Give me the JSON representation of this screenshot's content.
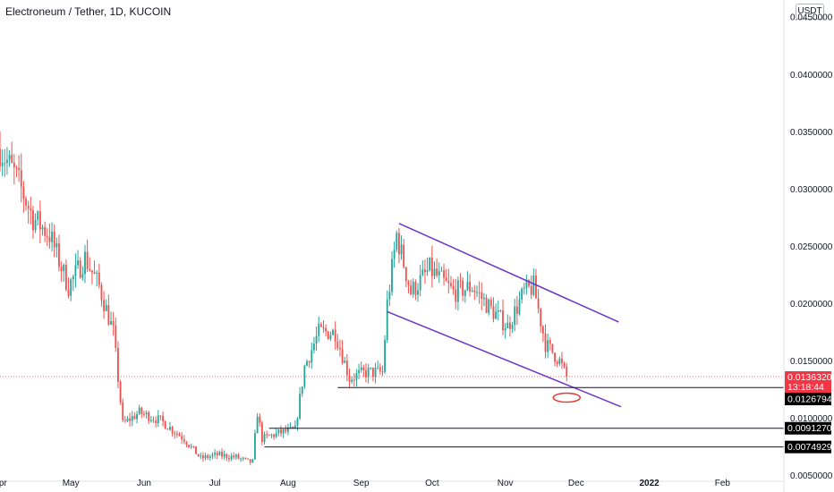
{
  "header": {
    "title": "Electroneum / Tether, 1D, KUCOIN",
    "currency": "USDT"
  },
  "colors": {
    "up": "#26a69a",
    "down": "#ef5350",
    "channel": "#6c34c9",
    "level": "#131722",
    "highlight": "#e53935",
    "current_price": "#f23645",
    "level_tag": "#000000"
  },
  "chart_data": {
    "type": "candlestick",
    "symbol": "Electroneum / Tether",
    "timeframe": "1D",
    "exchange": "KUCOIN",
    "x_range": [
      "2021-04-01",
      "2022-02-27"
    ],
    "ylim": [
      0.0045,
      0.0465
    ],
    "x_tick_labels": [
      {
        "date": "2021-04-01",
        "label": "Apr"
      },
      {
        "date": "2021-05-01",
        "label": "May"
      },
      {
        "date": "2021-06-01",
        "label": "Jun"
      },
      {
        "date": "2021-07-01",
        "label": "Jul"
      },
      {
        "date": "2021-08-01",
        "label": "Aug"
      },
      {
        "date": "2021-09-01",
        "label": "Sep"
      },
      {
        "date": "2021-10-01",
        "label": "Oct"
      },
      {
        "date": "2021-11-01",
        "label": "Nov"
      },
      {
        "date": "2021-12-01",
        "label": "Dec"
      },
      {
        "date": "2022-01-01",
        "label": "2022"
      },
      {
        "date": "2022-02-01",
        "label": "Feb"
      }
    ],
    "y_tick_labels": [
      "0.0450000",
      "0.0400000",
      "0.0350000",
      "0.0300000",
      "0.0250000",
      "0.0200000",
      "0.0150000",
      "0.0100000",
      "0.0050000"
    ],
    "y_tick_values": [
      0.045,
      0.04,
      0.035,
      0.03,
      0.025,
      0.02,
      0.015,
      0.01,
      0.005
    ],
    "current_price": {
      "value": 0.013632,
      "label": "0.0136320",
      "countdown": "13:18:44"
    },
    "price_levels": [
      {
        "value": 0.0126794,
        "label": "0.0126794",
        "from": "2021-08-22"
      },
      {
        "value": 0.009127,
        "label": "0.0091270",
        "from": "2021-07-24"
      },
      {
        "value": 0.0074929,
        "label": "0.0074929",
        "from": "2021-07-22"
      }
    ],
    "descending_channel": {
      "upper": [
        {
          "date": "2021-09-17",
          "value": 0.027
        },
        {
          "date": "2021-12-19",
          "value": 0.0184
        }
      ],
      "lower": [
        {
          "date": "2021-09-12",
          "value": 0.0193
        },
        {
          "date": "2021-12-20",
          "value": 0.011
        }
      ]
    },
    "highlight_ellipse": {
      "date": "2021-11-27",
      "value": 0.0118
    },
    "waypoints": [
      [
        "2021-04-01",
        0.0335
      ],
      [
        "2021-04-08",
        0.031
      ],
      [
        "2021-04-15",
        0.0275
      ],
      [
        "2021-04-22",
        0.026
      ],
      [
        "2021-04-30",
        0.0215
      ],
      [
        "2021-05-07",
        0.024
      ],
      [
        "2021-05-13",
        0.0215
      ],
      [
        "2021-05-19",
        0.0175
      ],
      [
        "2021-05-23",
        0.0095
      ],
      [
        "2021-05-30",
        0.0105
      ],
      [
        "2021-06-08",
        0.0098
      ],
      [
        "2021-06-18",
        0.0082
      ],
      [
        "2021-06-25",
        0.0065
      ],
      [
        "2021-07-02",
        0.0068
      ],
      [
        "2021-07-10",
        0.0066
      ],
      [
        "2021-07-15",
        0.0062
      ],
      [
        "2021-07-17",
        0.0062
      ],
      [
        "2021-07-19",
        0.0105
      ],
      [
        "2021-07-21",
        0.0082
      ],
      [
        "2021-07-28",
        0.0087
      ],
      [
        "2021-08-04",
        0.009
      ],
      [
        "2021-08-08",
        0.0145
      ],
      [
        "2021-08-14",
        0.0175
      ],
      [
        "2021-08-21",
        0.0175
      ],
      [
        "2021-08-27",
        0.0135
      ],
      [
        "2021-09-03",
        0.014
      ],
      [
        "2021-09-10",
        0.014
      ],
      [
        "2021-09-12",
        0.02
      ],
      [
        "2021-09-16",
        0.026
      ],
      [
        "2021-09-22",
        0.021
      ],
      [
        "2021-09-30",
        0.023
      ],
      [
        "2021-10-10",
        0.021
      ],
      [
        "2021-10-18",
        0.0215
      ],
      [
        "2021-10-26",
        0.0195
      ],
      [
        "2021-11-02",
        0.018
      ],
      [
        "2021-11-09",
        0.021
      ],
      [
        "2021-11-13",
        0.0215
      ],
      [
        "2021-11-18",
        0.0165
      ],
      [
        "2021-11-24",
        0.015
      ],
      [
        "2021-11-27",
        0.0136
      ]
    ]
  }
}
